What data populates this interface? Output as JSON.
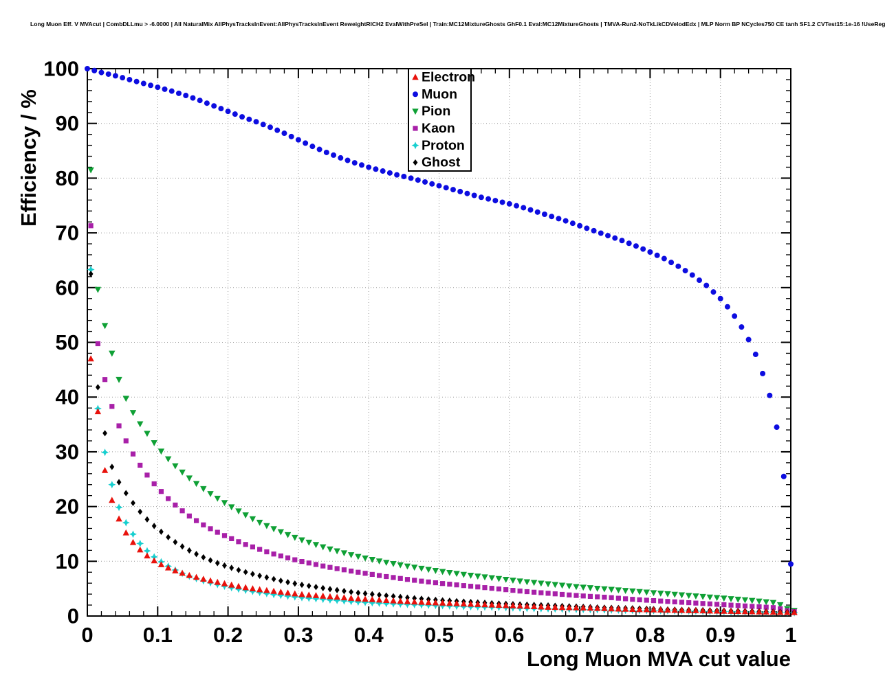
{
  "chart_data": {
    "type": "scatter",
    "title": "Long Muon Eff. V MVAcut | CombDLLmu > -6.0000 | All NaturalMix AllPhysTracksInEvent:AllPhysTracksInEvent ReweightRICH2 EvalWithPreSel | Train:MC12MixtureGhosts GhF0.1 Eval:MC12MixtureGhosts | TMVA-Run2-NoTkLikCDVelodEdx | MLP Norm BP NCycles750 CE tanh SF1.2 CVTest15:1e-16 !UseReg",
    "xlabel": "Long Muon MVA cut value",
    "ylabel": "Efficiency / %",
    "xlim": [
      0,
      1
    ],
    "ylim": [
      0,
      100
    ],
    "grid": true,
    "legend_position": "top-center",
    "x_ticks": [
      0,
      0.1,
      0.2,
      0.3,
      0.4,
      0.5,
      0.6,
      0.7,
      0.8,
      0.9,
      1
    ],
    "x_tick_labels": [
      "0",
      "0.1",
      "0.2",
      "0.3",
      "0.4",
      "0.5",
      "0.6",
      "0.7",
      "0.8",
      "0.9",
      "1"
    ],
    "y_ticks": [
      0,
      10,
      20,
      30,
      40,
      50,
      60,
      70,
      80,
      90,
      100
    ],
    "y_tick_labels": [
      "0",
      "10",
      "20",
      "30",
      "40",
      "50",
      "60",
      "70",
      "80",
      "90",
      "100"
    ],
    "colors": {
      "grid": "#9a9a9a",
      "frame": "#000000",
      "legend_border": "#000000",
      "legend_fill": "#ffffff"
    },
    "series": [
      {
        "name": "Electron",
        "color": "#e8120c",
        "marker": "triangle-up",
        "points": [
          [
            0.005,
            47.0
          ],
          [
            0.01,
            44.5
          ],
          [
            0.02,
            30.2
          ],
          [
            0.03,
            23.0
          ],
          [
            0.04,
            19.3
          ],
          [
            0.05,
            16.2
          ],
          [
            0.06,
            14.2
          ],
          [
            0.07,
            12.7
          ],
          [
            0.08,
            11.5
          ],
          [
            0.09,
            10.5
          ],
          [
            0.1,
            9.7
          ],
          [
            0.12,
            8.5
          ],
          [
            0.14,
            7.6
          ],
          [
            0.16,
            6.9
          ],
          [
            0.18,
            6.3
          ],
          [
            0.2,
            5.8
          ],
          [
            0.22,
            5.3
          ],
          [
            0.24,
            4.9
          ],
          [
            0.26,
            4.6
          ],
          [
            0.28,
            4.3
          ],
          [
            0.3,
            4.0
          ],
          [
            0.34,
            3.6
          ],
          [
            0.38,
            3.2
          ],
          [
            0.42,
            2.9
          ],
          [
            0.46,
            2.6
          ],
          [
            0.5,
            2.4
          ],
          [
            0.54,
            2.2
          ],
          [
            0.58,
            2.0
          ],
          [
            0.62,
            1.8
          ],
          [
            0.66,
            1.6
          ],
          [
            0.7,
            1.5
          ],
          [
            0.74,
            1.35
          ],
          [
            0.78,
            1.2
          ],
          [
            0.82,
            1.1
          ],
          [
            0.86,
            1.0
          ],
          [
            0.9,
            0.9
          ],
          [
            0.94,
            0.8
          ],
          [
            0.98,
            0.7
          ],
          [
            1.0,
            0.65
          ]
        ]
      },
      {
        "name": "Muon",
        "color": "#0d0de0",
        "marker": "circle",
        "points": [
          [
            0,
            100
          ],
          [
            0.02,
            99.3
          ],
          [
            0.04,
            98.7
          ],
          [
            0.06,
            98.0
          ],
          [
            0.08,
            97.3
          ],
          [
            0.1,
            96.6
          ],
          [
            0.12,
            95.9
          ],
          [
            0.14,
            95.1
          ],
          [
            0.16,
            94.2
          ],
          [
            0.18,
            93.2
          ],
          [
            0.2,
            92.2
          ],
          [
            0.22,
            91.2
          ],
          [
            0.24,
            90.3
          ],
          [
            0.26,
            89.3
          ],
          [
            0.28,
            88.2
          ],
          [
            0.3,
            87.0
          ],
          [
            0.32,
            85.8
          ],
          [
            0.34,
            84.7
          ],
          [
            0.36,
            83.7
          ],
          [
            0.38,
            82.8
          ],
          [
            0.4,
            82.0
          ],
          [
            0.42,
            81.3
          ],
          [
            0.44,
            80.6
          ],
          [
            0.46,
            80.0
          ],
          [
            0.48,
            79.3
          ],
          [
            0.5,
            78.6
          ],
          [
            0.52,
            77.9
          ],
          [
            0.54,
            77.2
          ],
          [
            0.56,
            76.5
          ],
          [
            0.58,
            75.9
          ],
          [
            0.6,
            75.3
          ],
          [
            0.62,
            74.6
          ],
          [
            0.64,
            73.8
          ],
          [
            0.66,
            73.0
          ],
          [
            0.68,
            72.2
          ],
          [
            0.7,
            71.3
          ],
          [
            0.72,
            70.4
          ],
          [
            0.74,
            69.5
          ],
          [
            0.76,
            68.6
          ],
          [
            0.78,
            67.6
          ],
          [
            0.8,
            66.5
          ],
          [
            0.82,
            65.3
          ],
          [
            0.84,
            63.9
          ],
          [
            0.86,
            62.3
          ],
          [
            0.88,
            60.4
          ],
          [
            0.9,
            58.0
          ],
          [
            0.91,
            56.5
          ],
          [
            0.92,
            54.8
          ],
          [
            0.93,
            52.8
          ],
          [
            0.94,
            50.5
          ],
          [
            0.95,
            47.8
          ],
          [
            0.96,
            44.3
          ],
          [
            0.97,
            40.3
          ],
          [
            0.98,
            34.5
          ],
          [
            0.99,
            25.5
          ],
          [
            1.0,
            9.5
          ]
        ]
      },
      {
        "name": "Pion",
        "color": "#0fa035",
        "marker": "triangle-down",
        "points": [
          [
            0.005,
            81.5
          ],
          [
            0.01,
            64.0
          ],
          [
            0.02,
            55.3
          ],
          [
            0.03,
            50.8
          ],
          [
            0.04,
            45.2
          ],
          [
            0.05,
            41.2
          ],
          [
            0.06,
            38.3
          ],
          [
            0.07,
            36.0
          ],
          [
            0.08,
            34.2
          ],
          [
            0.09,
            32.5
          ],
          [
            0.1,
            30.8
          ],
          [
            0.12,
            28.0
          ],
          [
            0.14,
            25.7
          ],
          [
            0.16,
            23.7
          ],
          [
            0.18,
            21.9
          ],
          [
            0.2,
            20.3
          ],
          [
            0.22,
            18.8
          ],
          [
            0.24,
            17.4
          ],
          [
            0.26,
            16.2
          ],
          [
            0.28,
            15.1
          ],
          [
            0.3,
            14.1
          ],
          [
            0.34,
            12.4
          ],
          [
            0.38,
            11.0
          ],
          [
            0.42,
            9.9
          ],
          [
            0.46,
            9.0
          ],
          [
            0.5,
            8.2
          ],
          [
            0.54,
            7.5
          ],
          [
            0.58,
            6.9
          ],
          [
            0.62,
            6.3
          ],
          [
            0.66,
            5.8
          ],
          [
            0.7,
            5.3
          ],
          [
            0.74,
            4.9
          ],
          [
            0.78,
            4.5
          ],
          [
            0.82,
            4.1
          ],
          [
            0.86,
            3.7
          ],
          [
            0.9,
            3.3
          ],
          [
            0.94,
            2.9
          ],
          [
            0.98,
            2.4
          ],
          [
            1.0,
            1.0
          ]
        ]
      },
      {
        "name": "Kaon",
        "color": "#a820a8",
        "marker": "square",
        "points": [
          [
            0.005,
            71.3
          ],
          [
            0.01,
            53.5
          ],
          [
            0.02,
            46.0
          ],
          [
            0.03,
            40.4
          ],
          [
            0.04,
            36.2
          ],
          [
            0.05,
            33.3
          ],
          [
            0.06,
            30.7
          ],
          [
            0.07,
            28.5
          ],
          [
            0.08,
            26.6
          ],
          [
            0.09,
            24.9
          ],
          [
            0.1,
            23.4
          ],
          [
            0.12,
            20.8
          ],
          [
            0.14,
            18.7
          ],
          [
            0.16,
            17.0
          ],
          [
            0.18,
            15.6
          ],
          [
            0.2,
            14.4
          ],
          [
            0.22,
            13.3
          ],
          [
            0.24,
            12.4
          ],
          [
            0.26,
            11.5
          ],
          [
            0.28,
            10.8
          ],
          [
            0.3,
            10.1
          ],
          [
            0.34,
            9.0
          ],
          [
            0.38,
            8.1
          ],
          [
            0.42,
            7.3
          ],
          [
            0.46,
            6.6
          ],
          [
            0.5,
            6.0
          ],
          [
            0.54,
            5.5
          ],
          [
            0.58,
            5.0
          ],
          [
            0.62,
            4.5
          ],
          [
            0.66,
            4.1
          ],
          [
            0.7,
            3.7
          ],
          [
            0.74,
            3.4
          ],
          [
            0.78,
            3.0
          ],
          [
            0.82,
            2.7
          ],
          [
            0.86,
            2.4
          ],
          [
            0.9,
            2.1
          ],
          [
            0.94,
            1.8
          ],
          [
            0.98,
            1.5
          ],
          [
            1.0,
            0.8
          ]
        ]
      },
      {
        "name": "Proton",
        "color": "#17cfcf",
        "marker": "star4",
        "points": [
          [
            0.005,
            63.3
          ],
          [
            0.01,
            42.5
          ],
          [
            0.02,
            33.3
          ],
          [
            0.03,
            26.5
          ],
          [
            0.04,
            21.5
          ],
          [
            0.05,
            18.2
          ],
          [
            0.06,
            15.9
          ],
          [
            0.07,
            14.0
          ],
          [
            0.08,
            12.5
          ],
          [
            0.09,
            11.3
          ],
          [
            0.1,
            10.3
          ],
          [
            0.12,
            8.7
          ],
          [
            0.14,
            7.5
          ],
          [
            0.16,
            6.6
          ],
          [
            0.18,
            5.9
          ],
          [
            0.2,
            5.3
          ],
          [
            0.22,
            4.8
          ],
          [
            0.24,
            4.4
          ],
          [
            0.26,
            4.0
          ],
          [
            0.28,
            3.7
          ],
          [
            0.3,
            3.4
          ],
          [
            0.34,
            3.0
          ],
          [
            0.38,
            2.6
          ],
          [
            0.42,
            2.3
          ],
          [
            0.46,
            2.1
          ],
          [
            0.5,
            1.9
          ],
          [
            0.54,
            1.7
          ],
          [
            0.58,
            1.6
          ],
          [
            0.62,
            1.4
          ],
          [
            0.66,
            1.3
          ],
          [
            0.7,
            1.2
          ],
          [
            0.74,
            1.1
          ],
          [
            0.78,
            1.0
          ],
          [
            0.82,
            0.95
          ],
          [
            0.86,
            0.9
          ],
          [
            0.9,
            0.8
          ],
          [
            0.94,
            0.75
          ],
          [
            0.98,
            0.7
          ],
          [
            1.0,
            0.6
          ]
        ]
      },
      {
        "name": "Ghost",
        "color": "#000000",
        "marker": "diamond",
        "points": [
          [
            0.005,
            62.5
          ],
          [
            0.01,
            45.8
          ],
          [
            0.02,
            37.8
          ],
          [
            0.03,
            29.0
          ],
          [
            0.04,
            25.5
          ],
          [
            0.05,
            23.4
          ],
          [
            0.06,
            21.5
          ],
          [
            0.07,
            19.8
          ],
          [
            0.08,
            18.3
          ],
          [
            0.09,
            17.0
          ],
          [
            0.1,
            15.9
          ],
          [
            0.12,
            13.9
          ],
          [
            0.14,
            12.3
          ],
          [
            0.16,
            11.0
          ],
          [
            0.18,
            9.9
          ],
          [
            0.2,
            9.0
          ],
          [
            0.22,
            8.2
          ],
          [
            0.24,
            7.5
          ],
          [
            0.26,
            6.9
          ],
          [
            0.28,
            6.3
          ],
          [
            0.3,
            5.8
          ],
          [
            0.34,
            5.0
          ],
          [
            0.38,
            4.3
          ],
          [
            0.42,
            3.8
          ],
          [
            0.46,
            3.3
          ],
          [
            0.5,
            2.9
          ],
          [
            0.54,
            2.6
          ],
          [
            0.58,
            2.3
          ],
          [
            0.62,
            2.1
          ],
          [
            0.66,
            1.9
          ],
          [
            0.7,
            1.7
          ],
          [
            0.74,
            1.5
          ],
          [
            0.78,
            1.4
          ],
          [
            0.82,
            1.2
          ],
          [
            0.86,
            1.1
          ],
          [
            0.9,
            1.0
          ],
          [
            0.94,
            0.9
          ],
          [
            0.98,
            0.8
          ],
          [
            1.0,
            0.7
          ]
        ]
      }
    ]
  }
}
